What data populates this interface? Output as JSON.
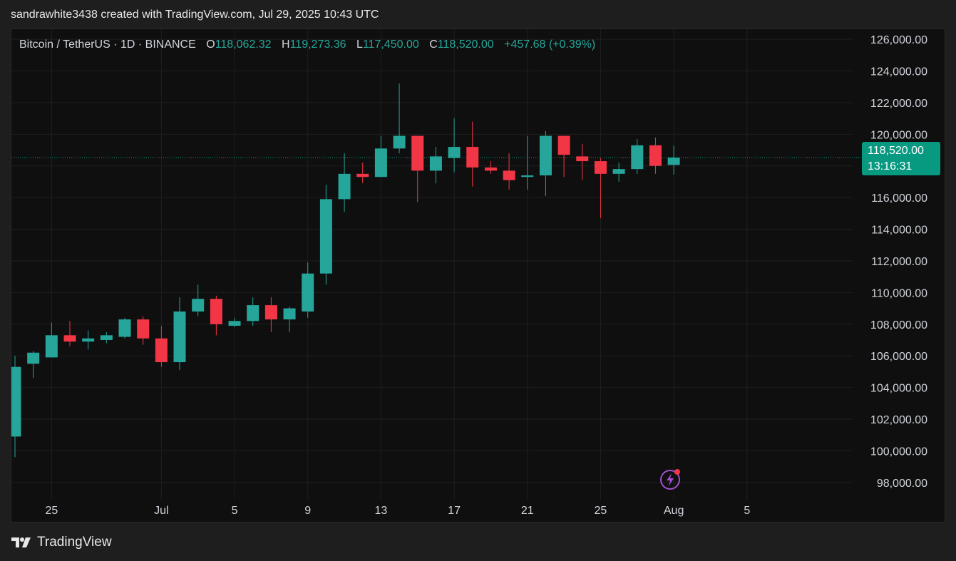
{
  "caption": "sandrawhite3438 created with TradingView.com, Jul 29, 2025 10:43 UTC",
  "legend": {
    "symbol": "Bitcoin / TetherUS · 1D · BINANCE",
    "open_key": "O",
    "open": "118,062.32",
    "high_key": "H",
    "high": "119,273.36",
    "low_key": "L",
    "low": "117,450.00",
    "close_key": "C",
    "close": "118,520.00",
    "change": "+457.68 (+0.39%)"
  },
  "last_price_label": {
    "price": "118,520.00",
    "countdown": "13:16:31"
  },
  "brand": "TradingView",
  "colors": {
    "up": "#26a69a",
    "down": "#f23645",
    "grid": "#1f1f1f",
    "axis_text": "#d1d4dc",
    "accent": "#089981"
  },
  "chart_data": {
    "type": "candlestick",
    "ylim": [
      97000,
      126500
    ],
    "y_ticks": [
      "126,000.00",
      "124,000.00",
      "122,000.00",
      "120,000.00",
      "118,000.00",
      "116,000.00",
      "114,000.00",
      "112,000.00",
      "110,000.00",
      "108,000.00",
      "106,000.00",
      "104,000.00",
      "102,000.00",
      "100,000.00",
      "98,000.00"
    ],
    "y_tick_values": [
      126000,
      124000,
      122000,
      120000,
      118000,
      116000,
      114000,
      112000,
      110000,
      108000,
      106000,
      104000,
      102000,
      100000,
      98000
    ],
    "x_tick_labels": [
      "25",
      "Jul",
      "5",
      "9",
      "13",
      "17",
      "21",
      "25",
      "Aug",
      "5"
    ],
    "x_tick_days": [
      2,
      8,
      12,
      16,
      20,
      24,
      28,
      32,
      36,
      40
    ],
    "last_price": 118520,
    "candles": [
      {
        "day": 0,
        "o": 100900,
        "h": 106000,
        "l": 99600,
        "c": 105300
      },
      {
        "day": 1,
        "o": 105500,
        "h": 106300,
        "l": 104600,
        "c": 106200
      },
      {
        "day": 2,
        "o": 105900,
        "h": 108100,
        "l": 105900,
        "c": 107300
      },
      {
        "day": 3,
        "o": 107300,
        "h": 108200,
        "l": 106600,
        "c": 106900
      },
      {
        "day": 4,
        "o": 106900,
        "h": 107600,
        "l": 106400,
        "c": 107100
      },
      {
        "day": 5,
        "o": 107000,
        "h": 107500,
        "l": 106800,
        "c": 107300
      },
      {
        "day": 6,
        "o": 107200,
        "h": 108400,
        "l": 107100,
        "c": 108300
      },
      {
        "day": 7,
        "o": 108300,
        "h": 108500,
        "l": 106700,
        "c": 107100
      },
      {
        "day": 8,
        "o": 107100,
        "h": 107900,
        "l": 105300,
        "c": 105600
      },
      {
        "day": 9,
        "o": 105600,
        "h": 109700,
        "l": 105100,
        "c": 108800
      },
      {
        "day": 10,
        "o": 108800,
        "h": 110500,
        "l": 108500,
        "c": 109600
      },
      {
        "day": 11,
        "o": 109600,
        "h": 109800,
        "l": 107300,
        "c": 108000
      },
      {
        "day": 12,
        "o": 107900,
        "h": 108400,
        "l": 107800,
        "c": 108200
      },
      {
        "day": 13,
        "o": 108200,
        "h": 109700,
        "l": 107900,
        "c": 109200
      },
      {
        "day": 14,
        "o": 109200,
        "h": 109700,
        "l": 107500,
        "c": 108300
      },
      {
        "day": 15,
        "o": 108300,
        "h": 109100,
        "l": 107500,
        "c": 109000
      },
      {
        "day": 16,
        "o": 108800,
        "h": 111900,
        "l": 108400,
        "c": 111200
      },
      {
        "day": 17,
        "o": 111200,
        "h": 116800,
        "l": 110500,
        "c": 115900
      },
      {
        "day": 18,
        "o": 115900,
        "h": 118800,
        "l": 115100,
        "c": 117500
      },
      {
        "day": 19,
        "o": 117500,
        "h": 118200,
        "l": 116900,
        "c": 117300
      },
      {
        "day": 20,
        "o": 117300,
        "h": 119900,
        "l": 117300,
        "c": 119100
      },
      {
        "day": 21,
        "o": 119100,
        "h": 123200,
        "l": 118800,
        "c": 119900
      },
      {
        "day": 22,
        "o": 119900,
        "h": 119900,
        "l": 115700,
        "c": 117700
      },
      {
        "day": 23,
        "o": 117700,
        "h": 119200,
        "l": 116900,
        "c": 118600
      },
      {
        "day": 24,
        "o": 118500,
        "h": 121000,
        "l": 117600,
        "c": 119200
      },
      {
        "day": 25,
        "o": 119200,
        "h": 120800,
        "l": 116700,
        "c": 117900
      },
      {
        "day": 26,
        "o": 117900,
        "h": 118300,
        "l": 117500,
        "c": 117700
      },
      {
        "day": 27,
        "o": 117700,
        "h": 118800,
        "l": 116500,
        "c": 117100
      },
      {
        "day": 28,
        "o": 117300,
        "h": 119900,
        "l": 116500,
        "c": 117400
      },
      {
        "day": 29,
        "o": 117400,
        "h": 120200,
        "l": 116100,
        "c": 119900
      },
      {
        "day": 30,
        "o": 119900,
        "h": 119900,
        "l": 117300,
        "c": 118700
      },
      {
        "day": 31,
        "o": 118600,
        "h": 119400,
        "l": 117100,
        "c": 118300
      },
      {
        "day": 32,
        "o": 118300,
        "h": 118500,
        "l": 114700,
        "c": 117500
      },
      {
        "day": 33,
        "o": 117500,
        "h": 118200,
        "l": 117000,
        "c": 117800
      },
      {
        "day": 34,
        "o": 117800,
        "h": 119700,
        "l": 117500,
        "c": 119300
      },
      {
        "day": 35,
        "o": 119300,
        "h": 119800,
        "l": 117500,
        "c": 118000
      },
      {
        "day": 36,
        "o": 118062.32,
        "h": 119273.36,
        "l": 117450,
        "c": 118520
      }
    ]
  }
}
